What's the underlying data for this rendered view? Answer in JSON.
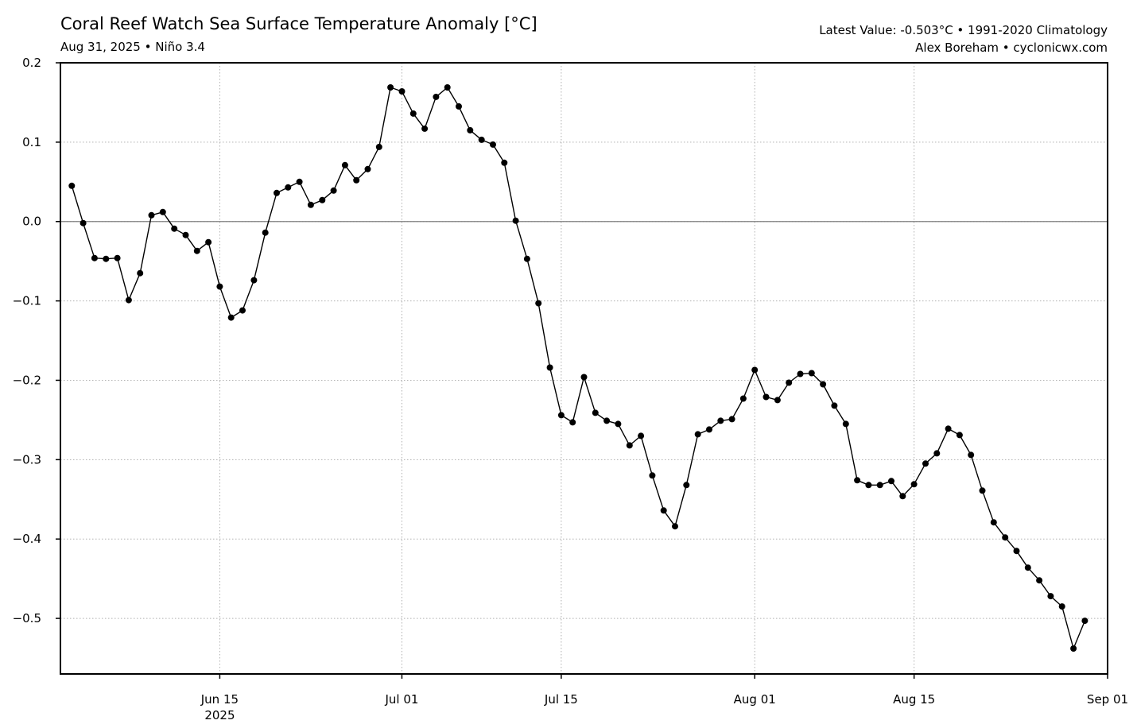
{
  "header": {
    "title": "Coral Reef Watch Sea Surface Temperature Anomaly [°C]",
    "subtitle": "Aug 31, 2025 • Niño 3.4",
    "info_line1": "Latest Value: -0.503°C • 1991-2020 Climatology",
    "info_line2": "Alex Boreham • cyclonicwx.com"
  },
  "chart_data": {
    "type": "line",
    "title": "Coral Reef Watch Sea Surface Temperature Anomaly [°C]",
    "subtitle": "Aug 31, 2025 • Niño 3.4",
    "xlabel": "",
    "ylabel": "",
    "x_start": "2025-06-02",
    "x_end": "2025-08-31",
    "xlim": [
      "2025-06-01",
      "2025-09-01"
    ],
    "ylim": [
      -0.57,
      0.2
    ],
    "yticks": [
      0.2,
      0.1,
      0.0,
      -0.1,
      -0.2,
      -0.3,
      -0.4,
      -0.5
    ],
    "ytick_labels": [
      "0.2",
      "0.1",
      "0.0",
      "−0.1",
      "−0.2",
      "−0.3",
      "−0.4",
      "−0.5"
    ],
    "xticks": [
      {
        "date": "2025-06-15",
        "label": "Jun 15",
        "sublabel": "2025"
      },
      {
        "date": "2025-07-01",
        "label": "Jul 01",
        "sublabel": ""
      },
      {
        "date": "2025-07-15",
        "label": "Jul 15",
        "sublabel": ""
      },
      {
        "date": "2025-08-01",
        "label": "Aug 01",
        "sublabel": ""
      },
      {
        "date": "2025-08-15",
        "label": "Aug 15",
        "sublabel": ""
      },
      {
        "date": "2025-09-01",
        "label": "Sep 01",
        "sublabel": ""
      }
    ],
    "grid": true,
    "zero_line": true,
    "series": [
      {
        "color": "#000000",
        "values": [
          0.045,
          -0.002,
          -0.046,
          -0.047,
          -0.046,
          -0.099,
          -0.065,
          0.008,
          0.012,
          -0.009,
          -0.017,
          -0.037,
          -0.026,
          -0.082,
          -0.121,
          -0.112,
          -0.074,
          -0.014,
          0.036,
          0.043,
          0.05,
          0.021,
          0.027,
          0.039,
          0.071,
          0.052,
          0.066,
          0.094,
          0.169,
          0.164,
          0.136,
          0.117,
          0.157,
          0.169,
          0.145,
          0.115,
          0.103,
          0.097,
          0.074,
          0.001,
          -0.047,
          -0.103,
          -0.184,
          -0.244,
          -0.253,
          -0.196,
          -0.241,
          -0.251,
          -0.255,
          -0.282,
          -0.27,
          -0.32,
          -0.364,
          -0.384,
          -0.332,
          -0.268,
          -0.262,
          -0.251,
          -0.249,
          -0.223,
          -0.187,
          -0.221,
          -0.225,
          -0.203,
          -0.192,
          -0.191,
          -0.205,
          -0.232,
          -0.255,
          -0.326,
          -0.332,
          -0.332,
          -0.327,
          -0.346,
          -0.331,
          -0.305,
          -0.292,
          -0.261,
          -0.269,
          -0.294,
          -0.339,
          -0.379,
          -0.398,
          -0.415,
          -0.436,
          -0.452,
          -0.472,
          -0.485,
          -0.538,
          -0.503
        ]
      }
    ]
  }
}
